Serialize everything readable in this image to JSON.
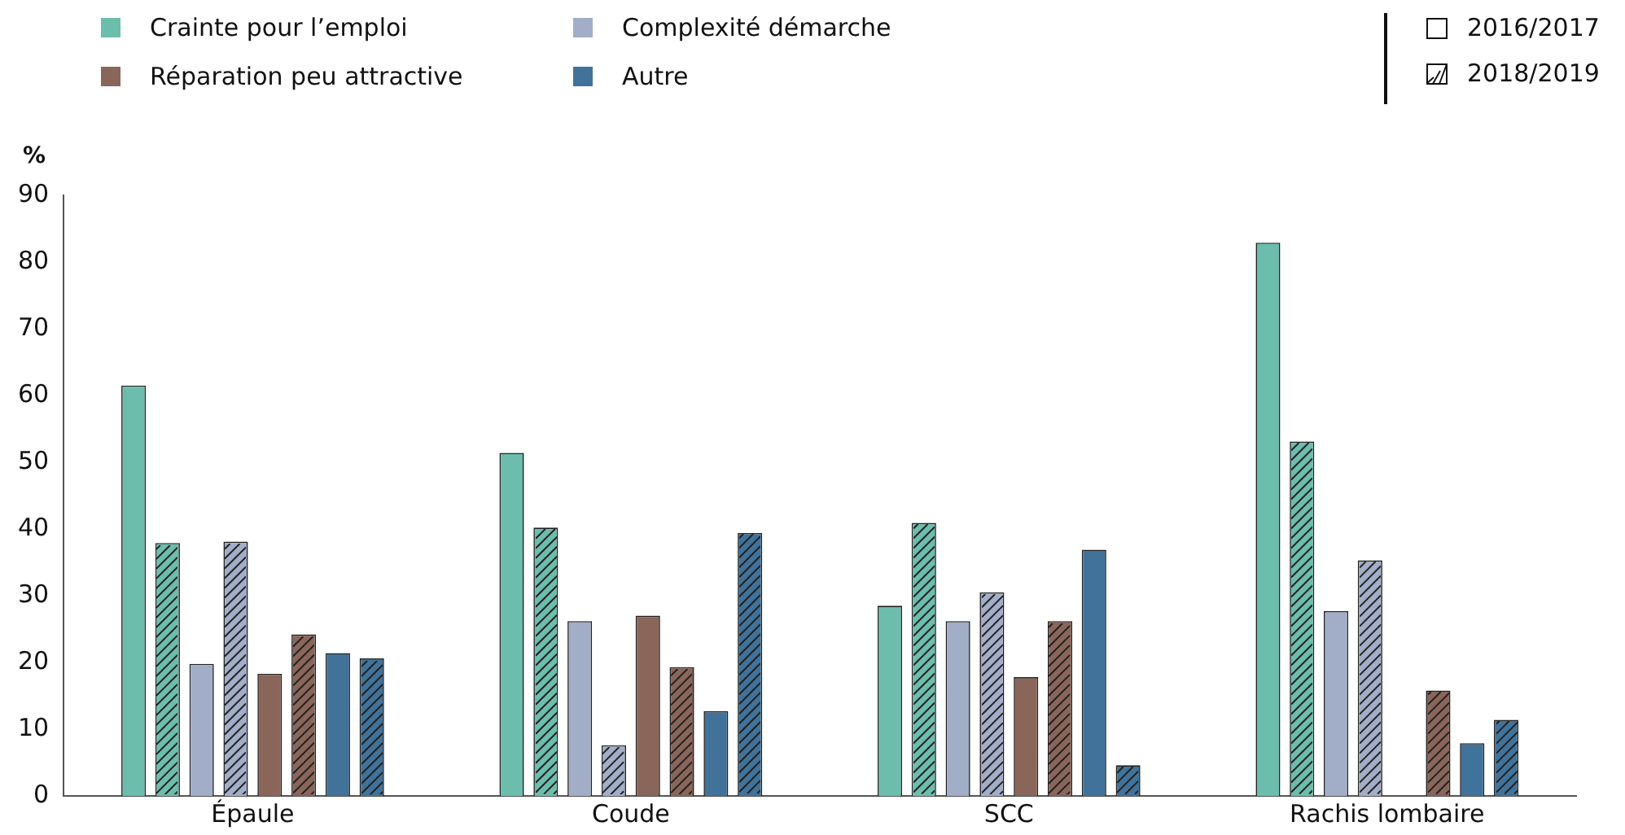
{
  "chart_data": {
    "type": "bar",
    "ylabel": "%",
    "categories": [
      "Épaule",
      "Coude",
      "SCC",
      "Rachis lombaire"
    ],
    "series": [
      {
        "name": "Crainte pour l’emploi",
        "color": "#6cbdac",
        "values": [
          61.5,
          51.4,
          28.5,
          82.9
        ]
      },
      {
        "color": "#6cbdac",
        "values": [
          37.9,
          40.2,
          40.9,
          53.1
        ]
      },
      {
        "name": "Complexité démarche",
        "color": "#a2aec8",
        "values": [
          19.8,
          26.2,
          26.2,
          27.7
        ]
      },
      {
        "color": "#a2aec8",
        "values": [
          38.1,
          7.6,
          30.5,
          35.3
        ]
      },
      {
        "name": "Réparation peu attractive",
        "color": "#8a665a",
        "values": [
          18.3,
          27.0,
          17.8,
          null
        ]
      },
      {
        "color": "#8a665a",
        "values": [
          24.2,
          19.3,
          26.2,
          15.8
        ]
      },
      {
        "name": "Autre",
        "color": "#41739a",
        "values": [
          21.4,
          12.7,
          36.9,
          7.9
        ]
      },
      {
        "color": "#41739a",
        "values": [
          20.6,
          39.4,
          4.6,
          11.4
        ]
      }
    ],
    "ylim": [
      0,
      90
    ],
    "yticks": [
      0,
      10,
      20,
      30,
      40,
      50,
      60,
      70,
      80,
      90
    ],
    "grid": false,
    "legend": "top",
    "annotations": [
      "2016/2017",
      "2018/2019"
    ]
  }
}
